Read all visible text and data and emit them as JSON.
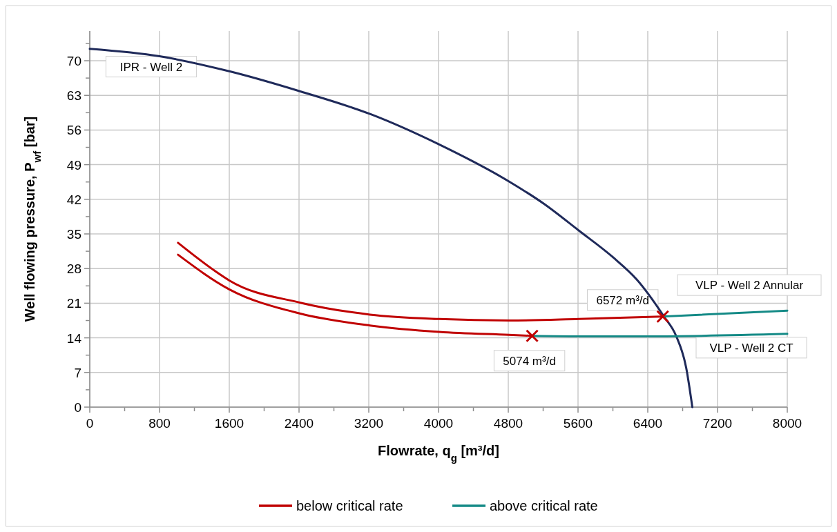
{
  "chart_data": {
    "type": "line",
    "xlabel": "Flowrate, q$_{g}$  [m³/d]",
    "ylabel": "Well flowing pressure, P$_{wf}$ [bar]",
    "xlim": [
      0,
      8000
    ],
    "ylim": [
      0,
      76
    ],
    "xticks": [
      0,
      {
        "value": 400,
        "label": null
      },
      800,
      {
        "value": 1200,
        "label": null
      },
      1600,
      {
        "value": 2000,
        "label": null
      },
      2400,
      {
        "value": 2800,
        "label": null
      },
      3200,
      {
        "value": 3600,
        "label": null
      },
      4000,
      {
        "value": 4400,
        "label": null
      },
      4800,
      {
        "value": 5200,
        "label": null
      },
      5600,
      {
        "value": 6000,
        "label": null
      },
      6400,
      {
        "value": 6800,
        "label": null
      },
      7200,
      {
        "value": 7600,
        "label": null
      },
      8000
    ],
    "yticks": [
      0,
      {
        "value": 3.5,
        "label": null
      },
      7,
      {
        "value": 10.5,
        "label": null
      },
      14,
      {
        "value": 17.5,
        "label": null
      },
      21,
      {
        "value": 24.5,
        "label": null
      },
      28,
      {
        "value": 31.5,
        "label": null
      },
      35,
      {
        "value": 38.5,
        "label": null
      },
      42,
      {
        "value": 45.5,
        "label": null
      },
      49,
      {
        "value": 52.5,
        "label": null
      },
      56,
      {
        "value": 59.5,
        "label": null
      },
      63,
      {
        "value": 66.5,
        "label": null
      },
      70,
      {
        "value": 73.5,
        "label": null
      }
    ],
    "grid": true,
    "legend": "bottom",
    "marker": "none",
    "series": [
      {
        "color": "#1f2a5a",
        "x": [
          0,
          800,
          1616,
          2416,
          3220,
          4016,
          4808,
          5208,
          5608,
          6000,
          6273,
          6582,
          6725,
          6840,
          6911
        ],
        "values": [
          72.4,
          70.9,
          67.8,
          63.8,
          59.2,
          53.0,
          45.6,
          41.1,
          35.7,
          30.3,
          25.8,
          18.4,
          14.4,
          8.0,
          0
        ]
      },
      {
        "name": "below critical rate",
        "color": "#c00000",
        "x": [
          1012,
          1437,
          1600,
          2415,
          3213,
          4010,
          4808,
          5608,
          6572
        ],
        "values": [
          33.2,
          27.5,
          25.6,
          21.1,
          18.7,
          17.8,
          17.5,
          17.8,
          18.3
        ]
      },
      {
        "color": "#c00000",
        "x": [
          1012,
          1600,
          2415,
          3213,
          4010,
          4808,
          5074
        ],
        "values": [
          30.8,
          23.8,
          18.9,
          16.5,
          15.2,
          14.6,
          14.4
        ]
      },
      {
        "name": "above critical rate",
        "color": "#148a86",
        "x": [
          6572,
          8000
        ],
        "values": [
          18.3,
          19.5
        ]
      },
      {
        "color": "#148a86",
        "x": [
          5074,
          5608,
          6400,
          8000
        ],
        "values": [
          14.4,
          14.3,
          14.3,
          14.8
        ]
      },
      {
        "type": "scatter",
        "marker": "cross",
        "color": "#c00000",
        "x": [
          6572,
          5074
        ],
        "values": [
          18.3,
          14.4
        ]
      }
    ],
    "annotations": [
      {
        "text": "IPR - Well 2",
        "x": 800,
        "y": 70.9
      },
      {
        "text": "6572 m³/d",
        "x": 6572,
        "y": 18.3
      },
      {
        "text": "5074 m³/d",
        "x": 5074,
        "y": 14.4
      },
      {
        "text": "VLP - Well 2 Annular",
        "x": 8000,
        "y": 19.5
      },
      {
        "text": "VLP - Well 2 CT",
        "x": 8000,
        "y": 14.8
      }
    ]
  }
}
